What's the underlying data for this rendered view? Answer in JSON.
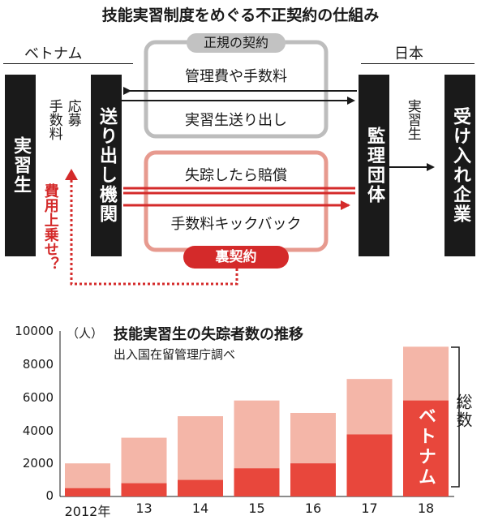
{
  "title": "技能実習制度をめぐる不正契約の仕組み",
  "diagram": {
    "country_left": "ベトナム",
    "country_right": "日本",
    "node_trainee": "実習生",
    "node_sending": "送り出し機関",
    "node_supervising": "監理団体",
    "node_company": "受け入れ企業",
    "label_apply": "応募",
    "label_fee": "手数料",
    "label_trainee_flow": "実習生",
    "formal_contract_tag": "正規の契約",
    "formal_items": [
      "管理費や手数料",
      "実習生送り出し"
    ],
    "secret_items": [
      "失踪したら賠償",
      "手数料キックバック"
    ],
    "secret_contract_tag": "裏契約",
    "cost_passed_on": "費用上乗せ？",
    "colors": {
      "dark": "#1a1a1a",
      "red": "#d42a2a",
      "formal_border": "#bdbdbd",
      "secret_border": "#e79a8f"
    }
  },
  "chart_data": {
    "type": "bar",
    "title": "技能実習生の失踪者数の推移",
    "subtitle": "出入国在留管理庁調べ",
    "ylabel": "（人）",
    "ylim": [
      0,
      10000
    ],
    "yticks": [
      "10000",
      "8000",
      "6000",
      "4000",
      "2000",
      "0"
    ],
    "categories": [
      "2012年",
      "13",
      "14",
      "15",
      "16",
      "17",
      "18"
    ],
    "series": [
      {
        "name": "総数",
        "values": [
          2000,
          3550,
          4850,
          5800,
          5050,
          7100,
          9050
        ],
        "color": "#f4b6a8"
      },
      {
        "name": "ベトナム",
        "values": [
          500,
          800,
          1000,
          1700,
          2000,
          3750,
          5800
        ],
        "color": "#e8473c"
      }
    ],
    "legend_total": "総数",
    "legend_vietnam": "ベトナム"
  }
}
